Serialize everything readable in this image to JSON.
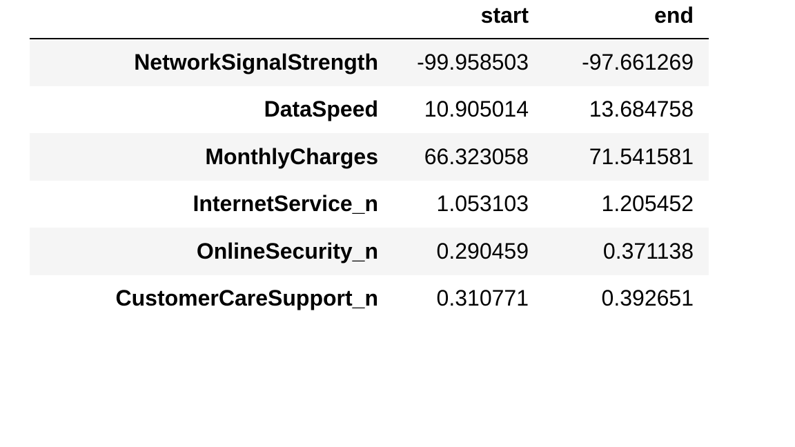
{
  "table": {
    "columns": [
      "start",
      "end"
    ],
    "rows": [
      {
        "index": "NetworkSignalStrength",
        "start": "-99.958503",
        "end": "-97.661269"
      },
      {
        "index": "DataSpeed",
        "start": "10.905014",
        "end": "13.684758"
      },
      {
        "index": "MonthlyCharges",
        "start": "66.323058",
        "end": "71.541581"
      },
      {
        "index": "InternetService_n",
        "start": "1.053103",
        "end": "1.205452"
      },
      {
        "index": "OnlineSecurity_n",
        "start": "0.290459",
        "end": "0.371138"
      },
      {
        "index": "CustomerCareSupport_n",
        "start": "0.310771",
        "end": "0.392651"
      }
    ]
  }
}
